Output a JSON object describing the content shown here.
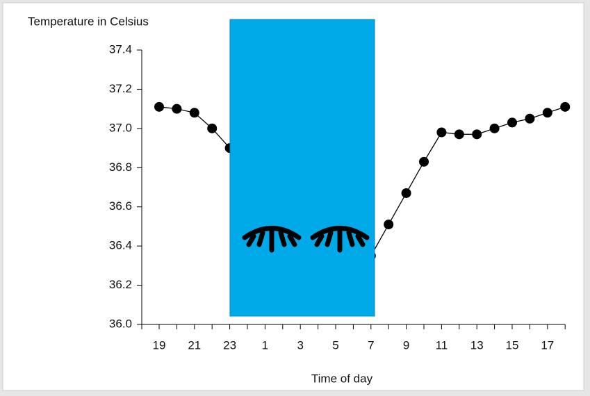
{
  "chart_data": {
    "type": "line",
    "ylabel": "Temperature in Celsius",
    "xlabel": "Time of day",
    "categories": [
      "19",
      null,
      "21",
      null,
      "23",
      null,
      "1",
      null,
      "3",
      null,
      "5",
      null,
      "7",
      null,
      "9",
      null,
      "11",
      null,
      "13",
      null,
      "15",
      null,
      "17",
      null
    ],
    "series": [
      {
        "color": "#000000",
        "values": [
          37.11,
          37.1,
          37.08,
          37.0,
          36.9,
          null,
          null,
          null,
          null,
          null,
          null,
          null,
          36.35,
          36.51,
          36.67,
          36.83,
          36.98,
          36.97,
          36.97,
          37.0,
          37.03,
          37.05,
          37.08,
          37.11
        ]
      }
    ],
    "ylim": [
      36.0,
      37.4
    ],
    "yticks": [
      {
        "value": 36.0,
        "label": "36.0"
      },
      36.2,
      36.4,
      36.6,
      36.8,
      {
        "value": 37.0,
        "label": "37.0"
      },
      37.2,
      37.4
    ]
  }
}
